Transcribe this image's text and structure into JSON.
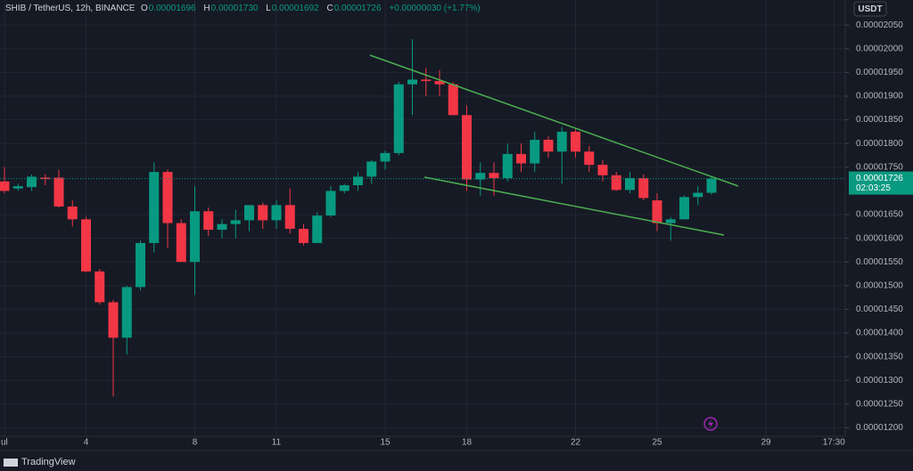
{
  "header": {
    "symbol": "SHIB / TetherUS, 12h, BINANCE",
    "o_label": "O",
    "o_value": "0.00001696",
    "h_label": "H",
    "h_value": "0.00001730",
    "l_label": "L",
    "l_value": "0.00001692",
    "c_label": "C",
    "c_value": "0.00001726",
    "change": "+0.00000030 (+1.77%)"
  },
  "branding": "TradingView",
  "chart_data": {
    "type": "candlestick",
    "currency": "USDT",
    "last_price_label": "0.00001726",
    "countdown": "02:03:25",
    "up_color": "#089981",
    "down_color": "#f23645",
    "categories": [
      "ul",
      null,
      null,
      null,
      null,
      null,
      "4",
      null,
      null,
      null,
      null,
      null,
      null,
      null,
      "8",
      null,
      null,
      null,
      null,
      null,
      "11",
      null,
      null,
      null,
      null,
      null,
      null,
      null,
      "15",
      null,
      null,
      null,
      null,
      null,
      "18",
      null,
      null,
      null,
      null,
      null,
      null,
      null,
      "22",
      null,
      null,
      null,
      null,
      null,
      "25",
      null,
      null,
      null,
      null,
      null,
      null,
      null,
      "29",
      null,
      null,
      null,
      null,
      "17:30"
    ],
    "open": [
      1.72e-05,
      1.705e-05,
      1.708e-05,
      1.728e-05,
      1.728e-05,
      1.667e-05,
      1.64e-05,
      1.53e-05,
      1.465e-05,
      1.39e-05,
      1.497e-05,
      1.59e-05,
      1.74e-05,
      1.632e-05,
      1.55e-05,
      1.657e-05,
      1.618e-05,
      1.63e-05,
      1.638e-05,
      1.67e-05,
      1.638e-05,
      1.67e-05,
      1.62e-05,
      1.59e-05,
      1.648e-05,
      1.7e-05,
      1.712e-05,
      1.73e-05,
      1.762e-05,
      1.78e-05,
      1.925e-05,
      1.935e-05,
      1.932e-05,
      1.925e-05,
      1.86e-05,
      1.724e-05,
      1.738e-05,
      1.727e-05,
      1.778e-05,
      1.758e-05,
      1.808e-05,
      1.783e-05,
      1.825e-05,
      1.783e-05,
      1.755e-05,
      1.733e-05,
      1.702e-05,
      1.727e-05,
      1.68e-05,
      1.632e-05,
      1.64e-05,
      1.687e-05,
      1.696e-05,
      null,
      null,
      null,
      null,
      null,
      null,
      null,
      null,
      null
    ],
    "high": [
      1.75e-05,
      1.715e-05,
      1.735e-05,
      1.735e-05,
      1.745e-05,
      1.68e-05,
      1.645e-05,
      1.535e-05,
      1.47e-05,
      1.5e-05,
      1.595e-05,
      1.76e-05,
      1.745e-05,
      1.64e-05,
      1.71e-05,
      1.665e-05,
      1.64e-05,
      1.66e-05,
      1.665e-05,
      1.675e-05,
      1.68e-05,
      1.705e-05,
      1.63e-05,
      1.655e-05,
      1.71e-05,
      1.715e-05,
      1.74e-05,
      1.765e-05,
      1.785e-05,
      1.93e-05,
      2.02e-05,
      1.96e-05,
      1.955e-05,
      1.93e-05,
      1.88e-05,
      1.76e-05,
      1.76e-05,
      1.8e-05,
      1.8e-05,
      1.825e-05,
      1.815e-05,
      1.835e-05,
      1.83e-05,
      1.795e-05,
      1.765e-05,
      1.74e-05,
      1.74e-05,
      1.735e-05,
      1.695e-05,
      1.645e-05,
      1.69e-05,
      1.71e-05,
      1.73e-05,
      null,
      null,
      null,
      null,
      null,
      null,
      null,
      null,
      null
    ],
    "low": [
      1.695e-05,
      1.7e-05,
      1.7e-05,
      1.712e-05,
      1.665e-05,
      1.625e-05,
      1.528e-05,
      1.46e-05,
      1.266e-05,
      1.355e-05,
      1.49e-05,
      1.57e-05,
      1.58e-05,
      1.55e-05,
      1.48e-05,
      1.605e-05,
      1.6e-05,
      1.6e-05,
      1.615e-05,
      1.62e-05,
      1.62e-05,
      1.61e-05,
      1.585e-05,
      1.59e-05,
      1.645e-05,
      1.695e-05,
      1.7e-05,
      1.715e-05,
      1.745e-05,
      1.775e-05,
      1.86e-05,
      1.9e-05,
      1.9e-05,
      1.86e-05,
      1.7e-05,
      1.69e-05,
      1.69e-05,
      1.72e-05,
      1.74e-05,
      1.74e-05,
      1.77e-05,
      1.715e-05,
      1.77e-05,
      1.74e-05,
      1.72e-05,
      1.7e-05,
      1.695e-05,
      1.68e-05,
      1.615e-05,
      1.595e-05,
      1.64e-05,
      1.67e-05,
      1.692e-05,
      null,
      null,
      null,
      null,
      null,
      null,
      null,
      null,
      null
    ],
    "close": [
      1.7e-05,
      1.71e-05,
      1.73e-05,
      1.725e-05,
      1.667e-05,
      1.64e-05,
      1.53e-05,
      1.465e-05,
      1.39e-05,
      1.497e-05,
      1.59e-05,
      1.74e-05,
      1.632e-05,
      1.55e-05,
      1.657e-05,
      1.618e-05,
      1.63e-05,
      1.638e-05,
      1.67e-05,
      1.638e-05,
      1.67e-05,
      1.62e-05,
      1.59e-05,
      1.648e-05,
      1.7e-05,
      1.712e-05,
      1.73e-05,
      1.762e-05,
      1.78e-05,
      1.925e-05,
      1.935e-05,
      1.932e-05,
      1.925e-05,
      1.86e-05,
      1.724e-05,
      1.738e-05,
      1.727e-05,
      1.778e-05,
      1.758e-05,
      1.808e-05,
      1.783e-05,
      1.825e-05,
      1.783e-05,
      1.755e-05,
      1.733e-05,
      1.702e-05,
      1.727e-05,
      1.685e-05,
      1.632e-05,
      1.64e-05,
      1.687e-05,
      1.696e-05,
      1.726e-05,
      null,
      null,
      null,
      null,
      null,
      null,
      null,
      null,
      null
    ],
    "ylim": [
      1.182e-05,
      2.103e-05
    ],
    "yticks": [
      {
        "value": 2.05e-05,
        "label": "0.00002050"
      },
      {
        "value": 2e-05,
        "label": "0.00002000"
      },
      {
        "value": 1.95e-05,
        "label": "0.00001950"
      },
      {
        "value": 1.9e-05,
        "label": "0.00001900"
      },
      {
        "value": 1.85e-05,
        "label": "0.00001850"
      },
      {
        "value": 1.8e-05,
        "label": "0.00001800"
      },
      {
        "value": 1.75e-05,
        "label": "0.00001750"
      },
      {
        "value": 1.65e-05,
        "label": "0.00001650"
      },
      {
        "value": 1.6e-05,
        "label": "0.00001600"
      },
      {
        "value": 1.55e-05,
        "label": "0.00001550"
      },
      {
        "value": 1.5e-05,
        "label": "0.00001500"
      },
      {
        "value": 1.45e-05,
        "label": "0.00001450"
      },
      {
        "value": 1.4e-05,
        "label": "0.00001400"
      },
      {
        "value": 1.35e-05,
        "label": "0.00001350"
      },
      {
        "value": 1.3e-05,
        "label": "0.00001300"
      },
      {
        "value": 1.25e-05,
        "label": "0.00001250"
      },
      {
        "value": 1.2e-05,
        "label": "0.00001200"
      }
    ],
    "grid": true
  }
}
